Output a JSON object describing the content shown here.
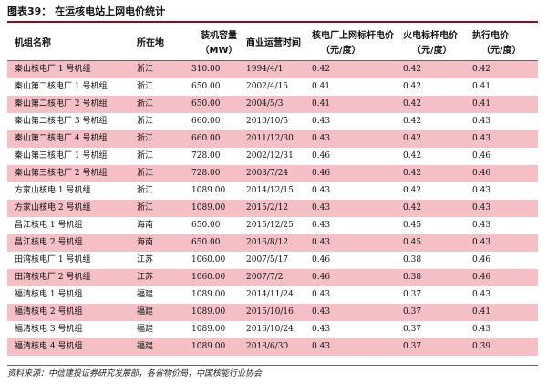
{
  "title": "图表39：  在运核电站上网电价统计",
  "headers": {
    "unit": "机组名称",
    "location": "所在地",
    "capacity_l1": "装机容量",
    "capacity_l2": "（MW）",
    "date": "商业运营时间",
    "nuclear_l1": "核电厂上网标杆电价",
    "nuclear_l2": "（元/度）",
    "thermal_l1": "火电标杆电价",
    "thermal_l2": "（元/度）",
    "exec_l1": "执行电价",
    "exec_l2": "（元/度）"
  },
  "rows": [
    [
      "秦山核电厂 1 号机组",
      "浙江",
      "310.00",
      "1994/4/1",
      "0.42",
      "0.42",
      "0.42"
    ],
    [
      "秦山第二核电厂 1 号机组",
      "浙江",
      "650.00",
      "2002/4/15",
      "0.41",
      "0.42",
      "0.41"
    ],
    [
      "秦山第二核电厂 2 号机组",
      "浙江",
      "650.00",
      "2004/5/3",
      "0.41",
      "0.42",
      "0.41"
    ],
    [
      "秦山第二核电厂 3 号机组",
      "浙江",
      "660.00",
      "2010/10/5",
      "0.43",
      "0.42",
      "0.43"
    ],
    [
      "秦山第二核电厂 4 号机组",
      "浙江",
      "660.00",
      "2011/12/30",
      "0.43",
      "0.42",
      "0.43"
    ],
    [
      "秦山第三核电厂 1 号机组",
      "浙江",
      "728.00",
      "2002/12/31",
      "0.46",
      "0.42",
      "0.46"
    ],
    [
      "秦山第三核电厂 2 号机组",
      "浙江",
      "728.00",
      "2003/7/24",
      "0.46",
      "0.42",
      "0.46"
    ],
    [
      "方家山核电 1 号机组",
      "浙江",
      "1089.00",
      "2014/12/15",
      "0.43",
      "0.42",
      "0.43"
    ],
    [
      "方家山核电 2 号机组",
      "浙江",
      "1089.00",
      "2015/2/12",
      "0.43",
      "0.42",
      "0.43"
    ],
    [
      "昌江核电 1 号机组",
      "海南",
      "650.00",
      "2015/12/25",
      "0.43",
      "0.45",
      "0.43"
    ],
    [
      "昌江核电 2 号机组",
      "海南",
      "650.00",
      "2016/8/12",
      "0.43",
      "0.45",
      "0.43"
    ],
    [
      "田湾核电厂 1 号机组",
      "江苏",
      "1060.00",
      "2007/5/17",
      "0.46",
      "0.38",
      "0.46"
    ],
    [
      "田湾核电厂 2 号机组",
      "江苏",
      "1060.00",
      "2007/7/2",
      "0.46",
      "0.38",
      "0.46"
    ],
    [
      "福清核电 1 号机组",
      "福建",
      "1089.00",
      "2014/11/24",
      "0.43",
      "0.37",
      "0.43"
    ],
    [
      "福清核电 2 号机组",
      "福建",
      "1089.00",
      "2015/10/16",
      "0.43",
      "0.37",
      "0.41"
    ],
    [
      "福清核电 3 号机组",
      "福建",
      "1089.00",
      "2016/10/24",
      "0.43",
      "0.37",
      "0.43"
    ],
    [
      "福清核电 4 号机组",
      "福建",
      "1089.00",
      "2018/6/30",
      "0.43",
      "0.37",
      "0.39"
    ]
  ],
  "colors": {
    "highlight": "#f4bfc5",
    "rule": "#8b0d1f"
  },
  "source": "资料来源：中信建投证券研究发展部，各省物价局，中国核能行业协会"
}
